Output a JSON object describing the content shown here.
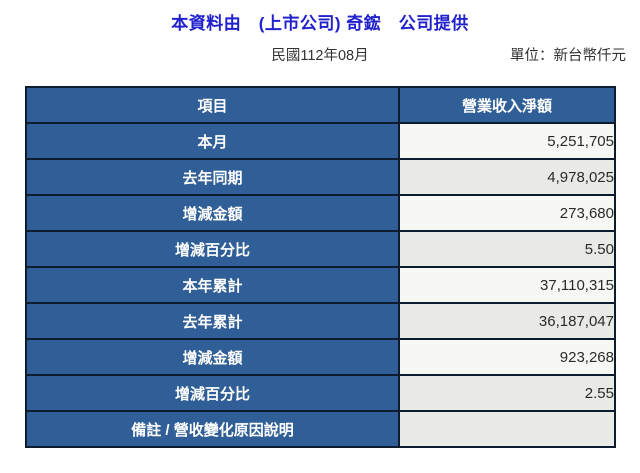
{
  "page": {
    "title": "本資料由　(上市公司) 奇鋐　公司提供",
    "period": "民國112年08月",
    "unit_label": "單位：新台幣仟元"
  },
  "table": {
    "header": {
      "item": "項目",
      "revenue": "營業收入淨額"
    },
    "rows": [
      {
        "label": "本月",
        "value": "5,251,705"
      },
      {
        "label": "去年同期",
        "value": "4,978,025"
      },
      {
        "label": "增減金額",
        "value": "273,680"
      },
      {
        "label": "增減百分比",
        "value": "5.50"
      },
      {
        "label": "本年累計",
        "value": "37,110,315"
      },
      {
        "label": "去年累計",
        "value": "36,187,047"
      },
      {
        "label": "增減金額",
        "value": "923,268"
      },
      {
        "label": "增減百分比",
        "value": "2.55"
      },
      {
        "label": "備註 / 營收變化原因說明",
        "value": ""
      }
    ]
  },
  "colors": {
    "title_blue": "#2121cd",
    "cell_blue": "#305f97",
    "table_border": "#0e1c30",
    "row_light": "#f7f7f4",
    "row_gray": "#e9e9e6"
  }
}
